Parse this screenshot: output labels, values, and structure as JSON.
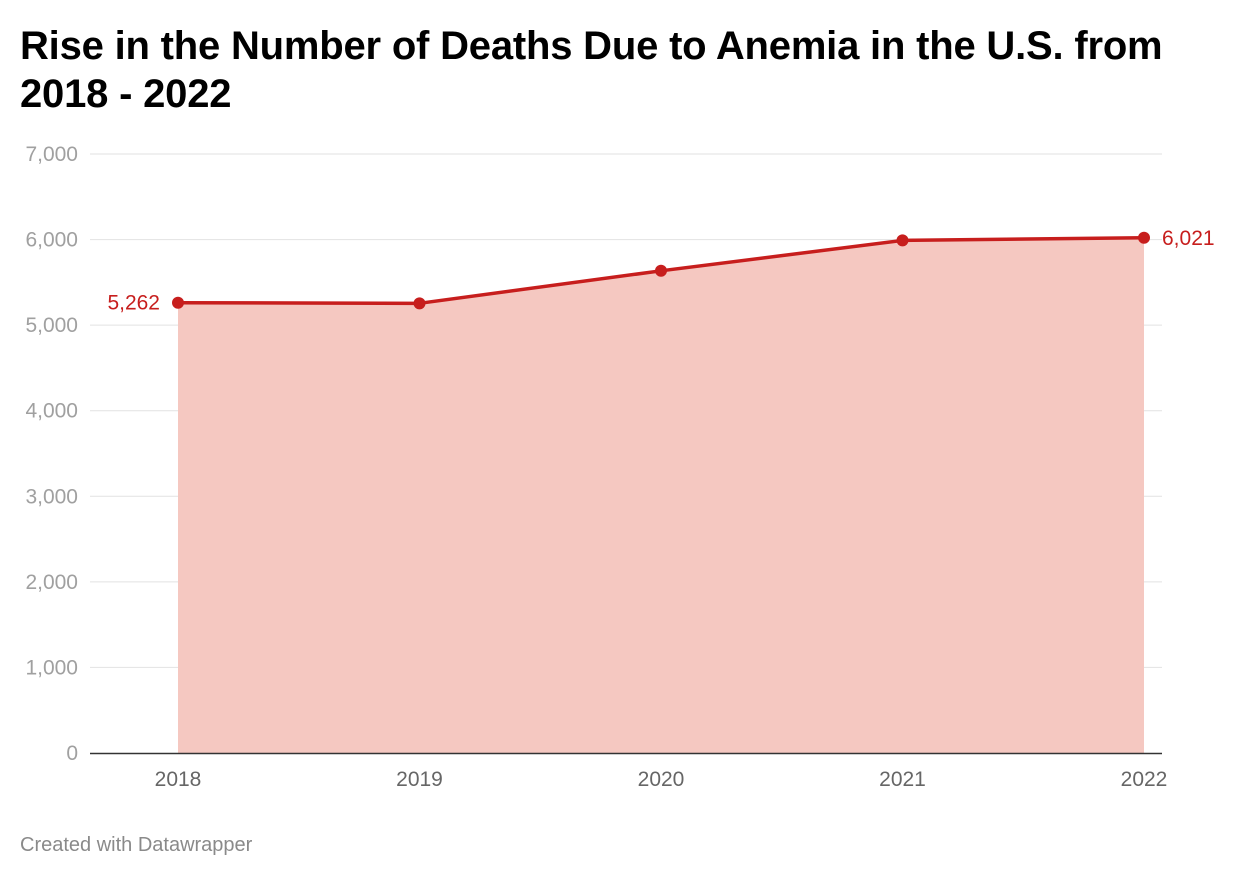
{
  "title": "Rise in the Number of Deaths Due to Anemia in the U.S. from 2018 - 2022",
  "footer": "Created with Datawrapper",
  "colors": {
    "line": "#c71e1d",
    "area": "#f5c8c1",
    "grid": "#e2e2e2",
    "axis": "#333333"
  },
  "chart_data": {
    "type": "area",
    "title": "Rise in the Number of Deaths Due to Anemia in the U.S. from 2018 - 2022",
    "categories": [
      "2018",
      "2019",
      "2020",
      "2021",
      "2022"
    ],
    "values": [
      5262,
      5255,
      5635,
      5990,
      6021
    ],
    "value_labels": [
      "5,262",
      "",
      "",
      "",
      "6,021"
    ],
    "y_ticks": [
      0,
      1000,
      2000,
      3000,
      4000,
      5000,
      6000,
      7000
    ],
    "y_tick_labels": [
      "0",
      "1,000",
      "2,000",
      "3,000",
      "4,000",
      "5,000",
      "6,000",
      "7,000"
    ],
    "ylim": [
      0,
      7000
    ],
    "grid": true,
    "xlabel": "",
    "ylabel": ""
  }
}
